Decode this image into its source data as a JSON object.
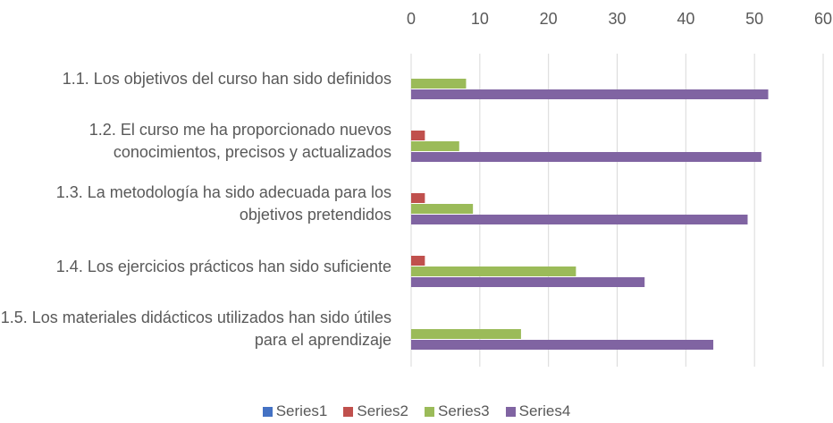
{
  "chart_data": {
    "type": "bar",
    "orientation": "horizontal",
    "categories": [
      "1.1. Los objetivos del curso han sido definidos",
      "1.2. El curso me ha proporcionado nuevos conocimientos, precisos y actualizados",
      "1.3. La metodología ha sido adecuada para los objetivos pretendidos",
      "1.4. Los ejercicios prácticos han sido suficiente",
      "1.5. Los materiales didácticos utilizados han sido útiles para el aprendizaje"
    ],
    "series": [
      {
        "name": "Series1",
        "color": "#4472c4",
        "values": [
          0,
          0,
          0,
          0,
          0
        ]
      },
      {
        "name": "Series2",
        "color": "#c0504d",
        "values": [
          0,
          2,
          2,
          2,
          0
        ]
      },
      {
        "name": "Series3",
        "color": "#9bbb59",
        "values": [
          8,
          7,
          9,
          24,
          16
        ]
      },
      {
        "name": "Series4",
        "color": "#8064a2",
        "values": [
          52,
          51,
          49,
          34,
          44
        ]
      }
    ],
    "xlim": [
      0,
      60
    ],
    "xticks": [
      0,
      10,
      20,
      30,
      40,
      50,
      60
    ],
    "grid": true,
    "legend": "bottom"
  }
}
